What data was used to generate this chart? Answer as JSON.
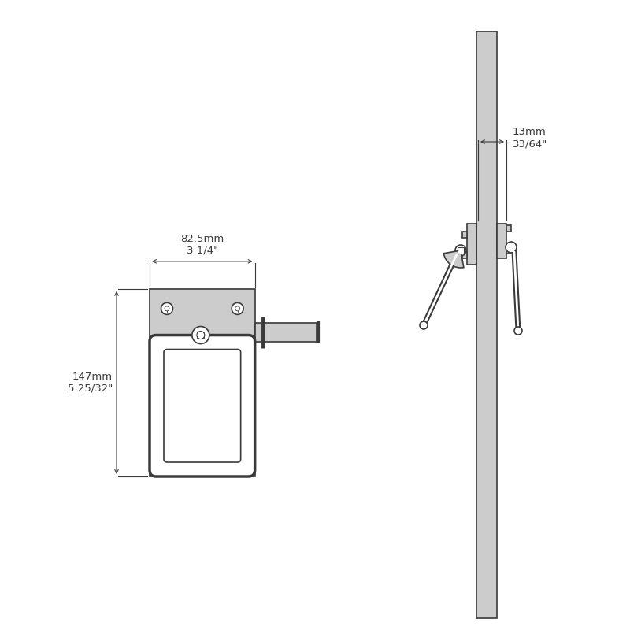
{
  "bg_color": "#ffffff",
  "line_color": "#3a3a3a",
  "fill_color": "#cccccc",
  "fill_light": "#e0e0e0",
  "front_width_label": "82.5mm\n3 1/4\"",
  "front_height_label": "147mm\n5 25/32\"",
  "side_depth_label": "13mm\n33/64\"",
  "font_size": 9.5,
  "lw_main": 1.2,
  "lw_dim": 0.8
}
